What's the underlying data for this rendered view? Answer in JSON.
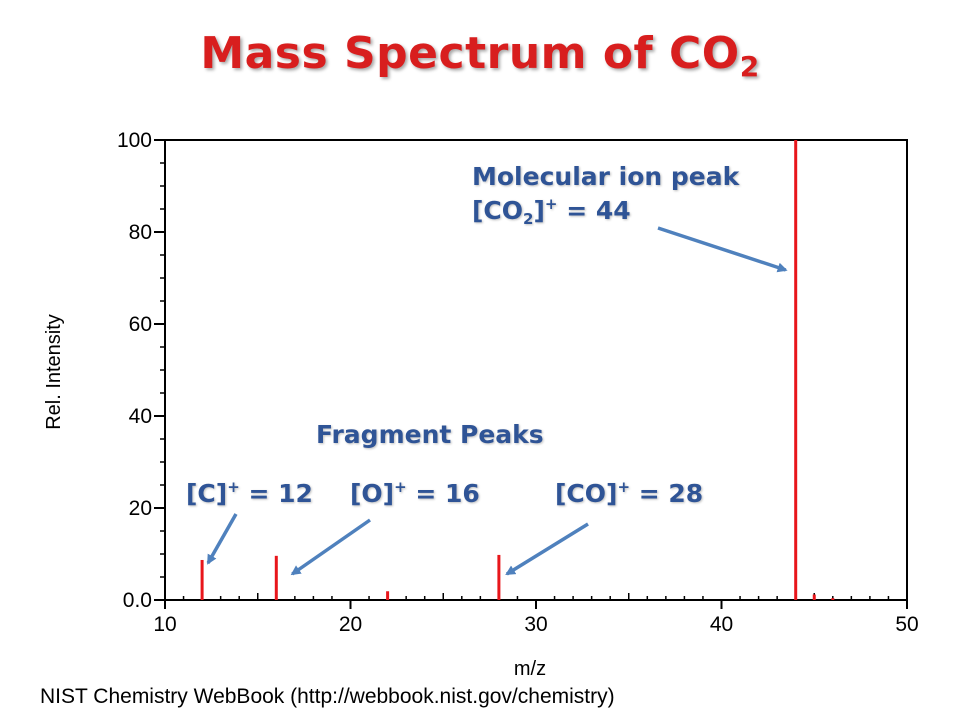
{
  "slide": {
    "title_main": "Mass Spectrum of CO",
    "title_sub": "2",
    "source": "NIST Chemistry WebBook (http://webbook.nist.gov/chemistry)"
  },
  "annotations": {
    "molecular": {
      "line1": "Molecular ion peak",
      "open": "[CO",
      "sub": "2",
      "close": "]",
      "sup": "+",
      "value": " = 44"
    },
    "fragment_title": "Fragment Peaks",
    "c_ion": {
      "label": "[C]",
      "sup": "+",
      "value": " = 12"
    },
    "o_ion": {
      "label": "[O]",
      "sup": "+",
      "value": " = 16"
    },
    "co_ion": {
      "label": "[CO]",
      "sup": "+",
      "value": " = 28"
    }
  },
  "chart_data": {
    "type": "bar",
    "xlabel": "m/z",
    "ylabel": "Rel. Intensity",
    "xlim": [
      10,
      50
    ],
    "ylim": [
      0,
      100
    ],
    "x_ticks": [
      10,
      20,
      30,
      40,
      50
    ],
    "y_ticks": [
      0,
      20,
      40,
      60,
      80,
      100
    ],
    "y_tick_labels": [
      "0.0",
      "20",
      "40",
      "60",
      "80",
      "100"
    ],
    "peaks": [
      {
        "mz": 12,
        "intensity": 8.7
      },
      {
        "mz": 16,
        "intensity": 9.6
      },
      {
        "mz": 22,
        "intensity": 1.9
      },
      {
        "mz": 28,
        "intensity": 9.8
      },
      {
        "mz": 44,
        "intensity": 100
      },
      {
        "mz": 45,
        "intensity": 1.2
      },
      {
        "mz": 46,
        "intensity": 0.4
      }
    ],
    "peak_color": "#e8161b",
    "annotation_color": "#2f5496",
    "arrow_color": "#4f81bd"
  }
}
